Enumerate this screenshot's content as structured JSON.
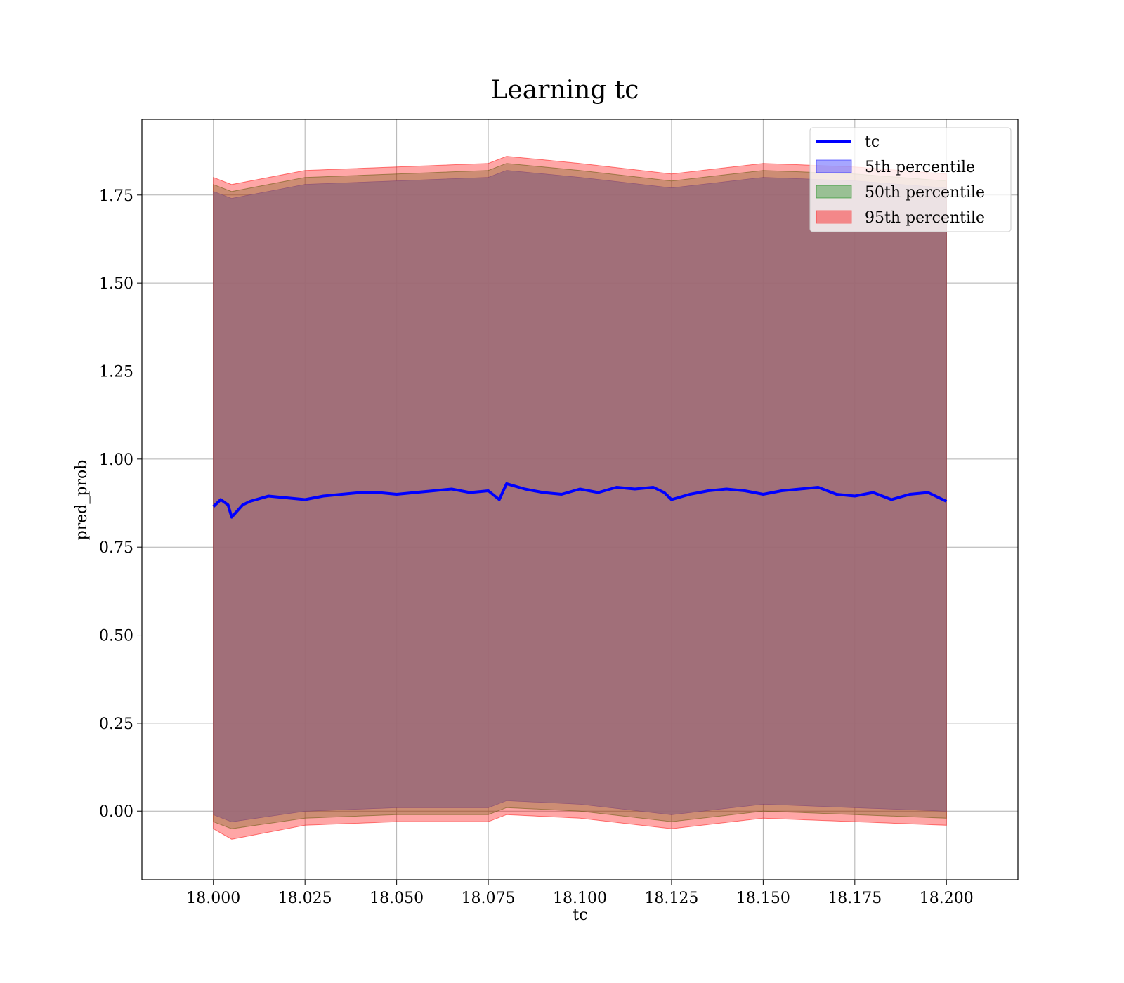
{
  "chart_data": {
    "type": "area",
    "title": "Learning tc",
    "xlabel": "tc",
    "ylabel": "pred_prob",
    "xlim": [
      17.9805,
      18.2195
    ],
    "ylim": [
      -0.195,
      1.965
    ],
    "x_ticks": [
      18.0,
      18.025,
      18.05,
      18.075,
      18.1,
      18.125,
      18.15,
      18.175,
      18.2
    ],
    "x_tick_labels": [
      "18.000",
      "18.025",
      "18.050",
      "18.075",
      "18.100",
      "18.125",
      "18.150",
      "18.175",
      "18.200"
    ],
    "y_ticks": [
      0.0,
      0.25,
      0.5,
      0.75,
      1.0,
      1.25,
      1.5,
      1.75
    ],
    "y_tick_labels": [
      "0.00",
      "0.25",
      "0.50",
      "0.75",
      "1.00",
      "1.25",
      "1.50",
      "1.75"
    ],
    "grid": true,
    "legend_position": "top-right",
    "line": {
      "name": "tc",
      "color": "#0000ff",
      "x": [
        18.0,
        18.002,
        18.004,
        18.005,
        18.008,
        18.01,
        18.015,
        18.02,
        18.025,
        18.03,
        18.035,
        18.04,
        18.045,
        18.05,
        18.055,
        18.06,
        18.065,
        18.07,
        18.075,
        18.078,
        18.08,
        18.085,
        18.09,
        18.095,
        18.1,
        18.105,
        18.11,
        18.115,
        18.12,
        18.123,
        18.125,
        18.13,
        18.135,
        18.14,
        18.145,
        18.15,
        18.155,
        18.16,
        18.165,
        18.17,
        18.175,
        18.18,
        18.185,
        18.19,
        18.195,
        18.2
      ],
      "y": [
        0.865,
        0.885,
        0.87,
        0.835,
        0.87,
        0.88,
        0.895,
        0.89,
        0.885,
        0.895,
        0.9,
        0.905,
        0.905,
        0.9,
        0.905,
        0.91,
        0.915,
        0.905,
        0.91,
        0.885,
        0.93,
        0.915,
        0.905,
        0.9,
        0.915,
        0.905,
        0.92,
        0.915,
        0.92,
        0.905,
        0.885,
        0.9,
        0.91,
        0.915,
        0.91,
        0.9,
        0.91,
        0.915,
        0.92,
        0.9,
        0.895,
        0.905,
        0.885,
        0.9,
        0.905,
        0.88
      ]
    },
    "series": [
      {
        "name": "5th percentile",
        "color": "#0000ff",
        "opacity": 0.3,
        "x": [
          18.0,
          18.005,
          18.025,
          18.05,
          18.075,
          18.08,
          18.1,
          18.125,
          18.15,
          18.175,
          18.2
        ],
        "lower": [
          -0.01,
          -0.03,
          0.0,
          0.01,
          0.01,
          0.03,
          0.02,
          -0.01,
          0.02,
          0.01,
          0.0
        ],
        "upper": [
          1.76,
          1.74,
          1.78,
          1.79,
          1.8,
          1.82,
          1.8,
          1.77,
          1.8,
          1.79,
          1.77
        ]
      },
      {
        "name": "50th percentile",
        "color": "#008000",
        "opacity": 0.3,
        "x": [
          18.0,
          18.005,
          18.025,
          18.05,
          18.075,
          18.08,
          18.1,
          18.125,
          18.15,
          18.175,
          18.2
        ],
        "lower": [
          -0.03,
          -0.05,
          -0.02,
          -0.01,
          -0.01,
          0.01,
          0.0,
          -0.03,
          0.0,
          -0.01,
          -0.02
        ],
        "upper": [
          1.78,
          1.76,
          1.8,
          1.81,
          1.82,
          1.84,
          1.82,
          1.79,
          1.82,
          1.81,
          1.79
        ]
      },
      {
        "name": "95th percentile",
        "color": "#ff0000",
        "opacity": 0.35,
        "x": [
          18.0,
          18.005,
          18.025,
          18.05,
          18.075,
          18.08,
          18.1,
          18.125,
          18.15,
          18.175,
          18.2
        ],
        "lower": [
          -0.05,
          -0.08,
          -0.04,
          -0.03,
          -0.03,
          -0.01,
          -0.02,
          -0.05,
          -0.02,
          -0.03,
          -0.04
        ],
        "upper": [
          1.8,
          1.78,
          1.82,
          1.83,
          1.84,
          1.86,
          1.84,
          1.81,
          1.84,
          1.83,
          1.81
        ]
      }
    ],
    "fill_overlap_color": "#a0707a"
  }
}
